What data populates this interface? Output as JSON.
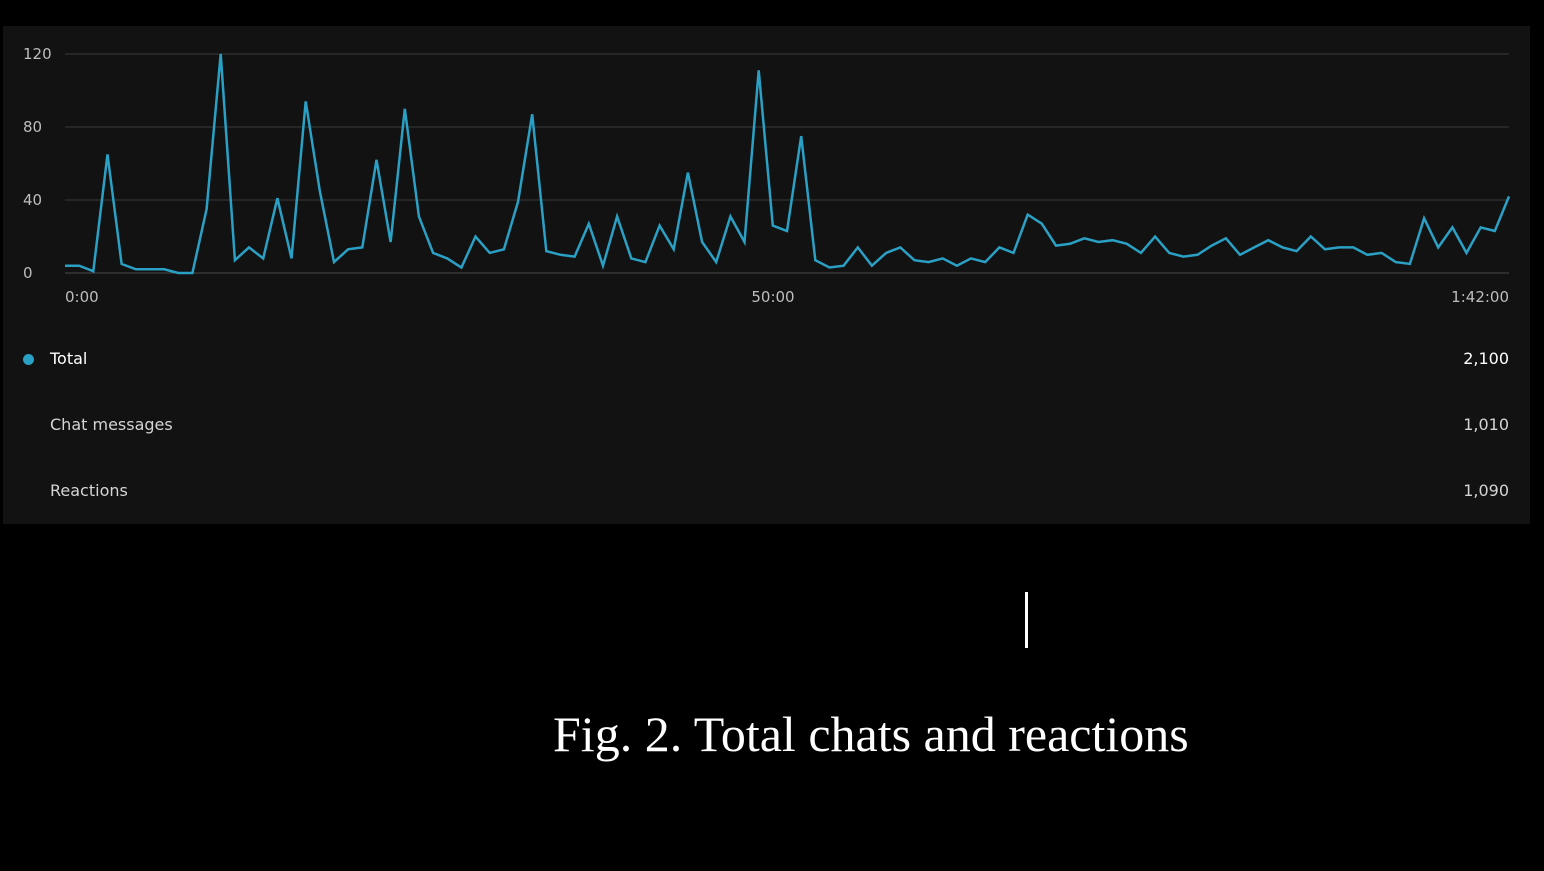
{
  "chart_data": {
    "type": "line",
    "title": "",
    "xlabel": "",
    "ylabel": "",
    "ylim": [
      0,
      120
    ],
    "xlim": [
      "0:00",
      "1:42:00"
    ],
    "x_tick_labels": [
      "0:00",
      "50:00",
      "1:42:00"
    ],
    "y_tick_labels": [
      "0",
      "40",
      "80",
      "120"
    ],
    "y_ticks": [
      0,
      40,
      80,
      120
    ],
    "grid": true,
    "series": [
      {
        "name": "Total",
        "color": "#2aa0c4",
        "values": [
          4,
          4,
          1,
          65,
          5,
          2,
          2,
          2,
          0,
          0,
          35,
          120,
          7,
          14,
          8,
          41,
          8,
          94,
          45,
          6,
          13,
          14,
          62,
          17,
          90,
          31,
          11,
          8,
          3,
          20,
          11,
          13,
          39,
          87,
          12,
          10,
          9,
          27,
          4,
          31,
          8,
          6,
          26,
          13,
          55,
          17,
          6,
          31,
          17,
          111,
          26,
          23,
          75,
          7,
          3,
          4,
          14,
          4,
          11,
          14,
          7,
          6,
          8,
          4,
          8,
          6,
          14,
          11,
          32,
          27,
          15,
          16,
          19,
          17,
          18,
          16,
          11,
          20,
          11,
          9,
          10,
          15,
          19,
          10,
          14,
          18,
          14,
          12,
          20,
          13,
          14,
          14,
          10,
          11,
          6,
          5,
          30,
          14,
          25,
          11,
          25,
          23,
          42
        ]
      }
    ]
  },
  "legend": {
    "total": {
      "label": "Total",
      "value": "2,100",
      "color": "#2aa0c4"
    },
    "chat_messages": {
      "label": "Chat messages",
      "value": "1,010"
    },
    "reactions": {
      "label": "Reactions",
      "value": "1,090"
    }
  },
  "caption": "Fig. 2. Total chats and reactions",
  "colors": {
    "background": "#000000",
    "panel": "#121212",
    "gridline": "#3a3a3a",
    "line": "#2aa0c4"
  }
}
